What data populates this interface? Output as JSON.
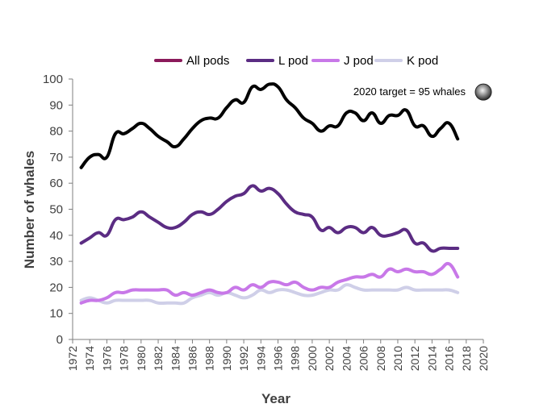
{
  "chart_data": {
    "type": "line",
    "xlabel": "Year",
    "ylabel": "Number of whales",
    "xlim": [
      1972,
      2020
    ],
    "ylim": [
      0,
      100
    ],
    "y_ticks": [
      "0",
      "10",
      "20",
      "30",
      "40",
      "50",
      "60",
      "70",
      "80",
      "90",
      "100"
    ],
    "x_ticks": [
      "1972",
      "1974",
      "1976",
      "1978",
      "1980",
      "1982",
      "1984",
      "1986",
      "1988",
      "1990",
      "1992",
      "1994",
      "1996",
      "1998",
      "2000",
      "2002",
      "2004",
      "2006",
      "2008",
      "2010",
      "2012",
      "2014",
      "2016",
      "2018",
      "2020"
    ],
    "x": [
      1973,
      1974,
      1975,
      1976,
      1977,
      1978,
      1979,
      1980,
      1981,
      1982,
      1983,
      1984,
      1985,
      1986,
      1987,
      1988,
      1989,
      1990,
      1991,
      1992,
      1993,
      1994,
      1995,
      1996,
      1997,
      1998,
      1999,
      2000,
      2001,
      2002,
      2003,
      2004,
      2005,
      2006,
      2007,
      2008,
      2009,
      2010,
      2011,
      2012,
      2013,
      2014,
      2015,
      2016,
      2017
    ],
    "series": [
      {
        "name": "All pods",
        "color": "#000000",
        "legend_color": "#8b1a5b",
        "values": [
          66,
          70,
          71,
          70,
          79,
          79,
          81,
          83,
          81,
          78,
          76,
          74,
          77,
          81,
          84,
          85,
          85,
          89,
          92,
          91,
          97,
          96,
          98,
          97,
          92,
          89,
          85,
          83,
          80,
          82,
          82,
          87,
          87,
          84,
          87,
          83,
          86,
          86,
          88,
          82,
          82,
          78,
          81,
          83,
          77
        ]
      },
      {
        "name": "L pod",
        "color": "#5b2c83",
        "legend_color": "#5b2c83",
        "values": [
          37,
          39,
          41,
          40,
          46,
          46,
          47,
          49,
          47,
          45,
          43,
          43,
          45,
          48,
          49,
          48,
          50,
          53,
          55,
          56,
          59,
          57,
          58,
          56,
          52,
          49,
          48,
          47,
          42,
          43,
          41,
          43,
          43,
          41,
          43,
          40,
          40,
          41,
          42,
          37,
          37,
          34,
          35,
          35,
          35
        ]
      },
      {
        "name": "J pod",
        "color": "#c878e8",
        "legend_color": "#c878e8",
        "values": [
          14,
          15,
          15,
          16,
          18,
          18,
          19,
          19,
          19,
          19,
          19,
          17,
          18,
          17,
          18,
          19,
          18,
          18,
          20,
          19,
          21,
          20,
          22,
          22,
          21,
          22,
          20,
          19,
          20,
          20,
          22,
          23,
          24,
          24,
          25,
          24,
          27,
          26,
          27,
          26,
          26,
          25,
          27,
          29,
          24
        ]
      },
      {
        "name": "K pod",
        "color": "#cfcfe8",
        "legend_color": "#cfcfe8",
        "values": [
          15,
          16,
          15,
          14,
          15,
          15,
          15,
          15,
          15,
          14,
          14,
          14,
          14,
          16,
          17,
          18,
          17,
          18,
          17,
          16,
          17,
          19,
          18,
          19,
          19,
          18,
          17,
          17,
          18,
          19,
          19,
          21,
          20,
          19,
          19,
          19,
          19,
          19,
          20,
          19,
          19,
          19,
          19,
          19,
          18
        ]
      }
    ],
    "annotations": [
      {
        "text": "2020 target =  95 whales",
        "x": 2020,
        "y": 95
      }
    ],
    "legend_position": "top"
  }
}
